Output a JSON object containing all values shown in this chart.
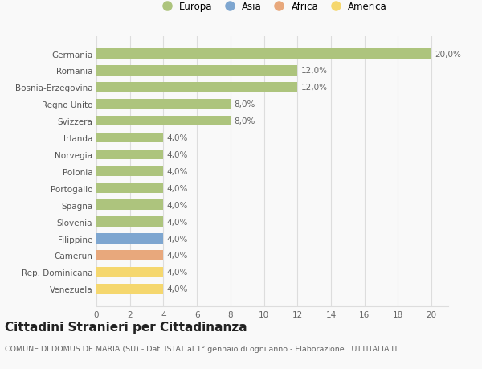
{
  "countries": [
    "Germania",
    "Romania",
    "Bosnia-Erzegovina",
    "Regno Unito",
    "Svizzera",
    "Irlanda",
    "Norvegia",
    "Polonia",
    "Portogallo",
    "Spagna",
    "Slovenia",
    "Filippine",
    "Camerun",
    "Rep. Dominicana",
    "Venezuela"
  ],
  "values": [
    20.0,
    12.0,
    12.0,
    8.0,
    8.0,
    4.0,
    4.0,
    4.0,
    4.0,
    4.0,
    4.0,
    4.0,
    4.0,
    4.0,
    4.0
  ],
  "labels": [
    "20,0%",
    "12,0%",
    "12,0%",
    "8,0%",
    "8,0%",
    "4,0%",
    "4,0%",
    "4,0%",
    "4,0%",
    "4,0%",
    "4,0%",
    "4,0%",
    "4,0%",
    "4,0%",
    "4,0%"
  ],
  "categories": [
    "Europa",
    "Asia",
    "Africa",
    "America"
  ],
  "bar_colors": [
    "#adc47d",
    "#adc47d",
    "#adc47d",
    "#adc47d",
    "#adc47d",
    "#adc47d",
    "#adc47d",
    "#adc47d",
    "#adc47d",
    "#adc47d",
    "#adc47d",
    "#7ea6d0",
    "#e8a87c",
    "#f5d76e",
    "#f5d76e"
  ],
  "legend_colors": [
    "#adc47d",
    "#7ea6d0",
    "#e8a87c",
    "#f5d76e"
  ],
  "xlim": [
    0,
    21
  ],
  "xticks": [
    0,
    2,
    4,
    6,
    8,
    10,
    12,
    14,
    16,
    18,
    20
  ],
  "title": "Cittadini Stranieri per Cittadinanza",
  "subtitle": "COMUNE DI DOMUS DE MARIA (SU) - Dati ISTAT al 1° gennaio di ogni anno - Elaborazione TUTTITALIA.IT",
  "background_color": "#f9f9f9",
  "grid_color": "#dddddd",
  "bar_height": 0.6,
  "label_fontsize": 7.5,
  "tick_fontsize": 7.5,
  "title_fontsize": 11,
  "subtitle_fontsize": 6.8
}
